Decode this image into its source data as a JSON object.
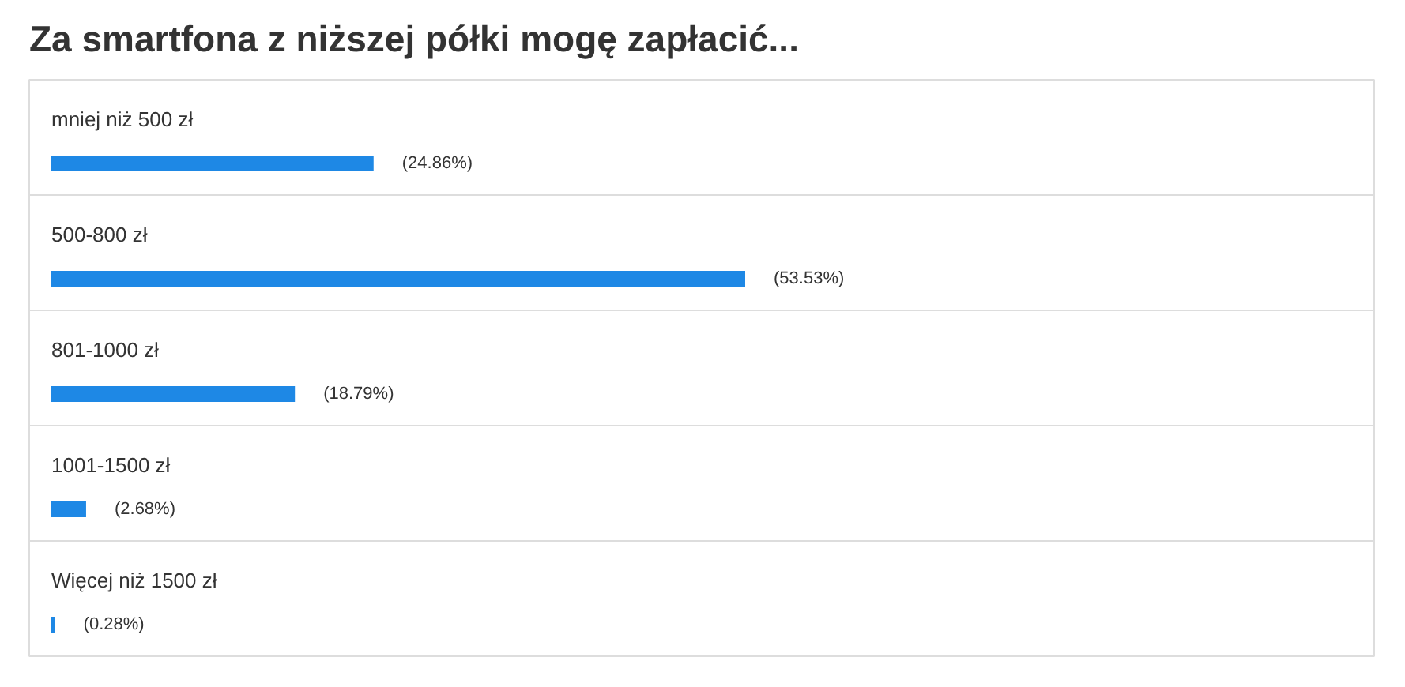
{
  "chart_data": {
    "type": "bar",
    "orientation": "horizontal",
    "title": "Za smartfona z niższej półki mogę zapłacić...",
    "categories": [
      "mniej niż 500 zł",
      "500-800 zł",
      "801-1000 zł",
      "1001-1500 zł",
      "Więcej niż 1500 zł"
    ],
    "values": [
      24.86,
      53.53,
      18.79,
      2.68,
      0.28
    ],
    "value_labels": [
      "(24.86%)",
      "(53.53%)",
      "(18.79%)",
      "(2.68%)",
      "(0.28%)"
    ],
    "color": "#1e88e5"
  }
}
